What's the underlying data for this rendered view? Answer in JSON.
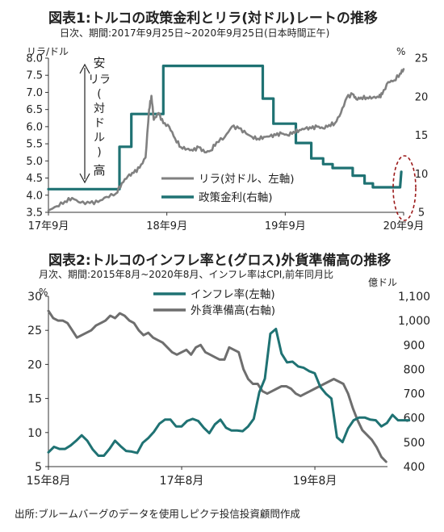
{
  "chart1": {
    "title": "図表1:トルコの政策金利とリラ(対ドル)レートの推移",
    "subtitle": "日次、期間:2017年9月25日~2020年9月25日(日本時間正午)",
    "left_unit": "リラ/ドル",
    "right_unit": "%",
    "annotation": [
      "安",
      "リラ",
      "(",
      "対",
      "ド",
      "ル",
      ")",
      "高"
    ],
    "legend": [
      "リラ(対ドル、左軸)",
      "政策金利(右軸)"
    ],
    "colors": {
      "lira": "#808080",
      "policy": "#1f7273",
      "circle": "#9b1a1a"
    }
  },
  "chart2": {
    "title": "図表2:トルコのインフレ率と(グロス)外貨準備高の推移",
    "subtitle": "月次、期間:2015年8月~2020年8月、インフレ率はCPI,前年同月比",
    "left_unit": "%",
    "right_unit": "億ドル",
    "legend": [
      "インフレ率(左軸)",
      "外貨準備高(右軸)"
    ],
    "colors": {
      "inflation": "#1f7273",
      "reserves": "#6e6e6e"
    }
  },
  "source": "出所:ブルームバーグのデータを使用しピクテ投信投資顧問作成",
  "chart_data": [
    {
      "type": "line",
      "title": "図表1:トルコの政策金利とリラ(対ドル)レートの推移",
      "x_tick_labels": [
        "17年9月",
        "18年9月",
        "19年9月",
        "20年9月"
      ],
      "left_axis": {
        "ticks": [
          "3.5",
          "4.0",
          "4.5",
          "5.0",
          "5.5",
          "6.0",
          "6.5",
          "7.0",
          "7.5",
          "8.0"
        ],
        "ylim": [
          3.5,
          8.0
        ]
      },
      "right_axis": {
        "ticks": [
          "5",
          "10",
          "15",
          "20",
          "25"
        ],
        "ylim": [
          5,
          25
        ]
      },
      "x_range": [
        2017.73,
        2020.73
      ],
      "series": [
        {
          "name": "リラ(対ドル、左軸)",
          "axis": "left",
          "points": [
            [
              2017.73,
              3.55
            ],
            [
              2017.8,
              3.68
            ],
            [
              2017.87,
              3.82
            ],
            [
              2017.93,
              3.92
            ],
            [
              2018.0,
              3.78
            ],
            [
              2018.08,
              3.77
            ],
            [
              2018.15,
              3.8
            ],
            [
              2018.22,
              3.95
            ],
            [
              2018.3,
              4.05
            ],
            [
              2018.35,
              4.35
            ],
            [
              2018.4,
              4.55
            ],
            [
              2018.45,
              4.65
            ],
            [
              2018.5,
              4.8
            ],
            [
              2018.55,
              5.1
            ],
            [
              2018.58,
              6.5
            ],
            [
              2018.6,
              6.9
            ],
            [
              2018.62,
              6.2
            ],
            [
              2018.66,
              6.4
            ],
            [
              2018.7,
              6.1
            ],
            [
              2018.75,
              6.0
            ],
            [
              2018.8,
              5.65
            ],
            [
              2018.85,
              5.4
            ],
            [
              2018.9,
              5.35
            ],
            [
              2018.95,
              5.3
            ],
            [
              2019.0,
              5.4
            ],
            [
              2019.05,
              5.25
            ],
            [
              2019.1,
              5.3
            ],
            [
              2019.15,
              5.55
            ],
            [
              2019.22,
              5.7
            ],
            [
              2019.28,
              6.0
            ],
            [
              2019.34,
              5.95
            ],
            [
              2019.4,
              5.8
            ],
            [
              2019.45,
              5.7
            ],
            [
              2019.5,
              5.65
            ],
            [
              2019.55,
              5.7
            ],
            [
              2019.6,
              5.72
            ],
            [
              2019.65,
              5.75
            ],
            [
              2019.7,
              5.8
            ],
            [
              2019.75,
              5.75
            ],
            [
              2019.8,
              5.85
            ],
            [
              2019.85,
              5.9
            ],
            [
              2019.9,
              5.95
            ],
            [
              2019.95,
              5.95
            ],
            [
              2020.0,
              6.0
            ],
            [
              2020.05,
              5.95
            ],
            [
              2020.1,
              6.05
            ],
            [
              2020.15,
              6.1
            ],
            [
              2020.2,
              6.4
            ],
            [
              2020.25,
              6.85
            ],
            [
              2020.3,
              6.95
            ],
            [
              2020.33,
              6.8
            ],
            [
              2020.37,
              6.85
            ],
            [
              2020.42,
              6.85
            ],
            [
              2020.47,
              6.85
            ],
            [
              2020.52,
              6.86
            ],
            [
              2020.55,
              6.95
            ],
            [
              2020.6,
              7.3
            ],
            [
              2020.65,
              7.35
            ],
            [
              2020.7,
              7.55
            ],
            [
              2020.73,
              7.68
            ]
          ]
        },
        {
          "name": "政策金利(右軸)",
          "axis": "right",
          "points": [
            [
              2017.73,
              8.0
            ],
            [
              2018.33,
              8.0
            ],
            [
              2018.33,
              13.5
            ],
            [
              2018.43,
              13.5
            ],
            [
              2018.43,
              17.75
            ],
            [
              2018.7,
              17.75
            ],
            [
              2018.7,
              24.0
            ],
            [
              2019.54,
              24.0
            ],
            [
              2019.54,
              19.75
            ],
            [
              2019.63,
              19.75
            ],
            [
              2019.63,
              16.5
            ],
            [
              2019.82,
              16.5
            ],
            [
              2019.82,
              14.0
            ],
            [
              2019.95,
              14.0
            ],
            [
              2019.95,
              12.0
            ],
            [
              2020.05,
              12.0
            ],
            [
              2020.05,
              11.25
            ],
            [
              2020.13,
              11.25
            ],
            [
              2020.13,
              10.75
            ],
            [
              2020.3,
              10.75
            ],
            [
              2020.3,
              9.75
            ],
            [
              2020.4,
              9.75
            ],
            [
              2020.4,
              8.75
            ],
            [
              2020.47,
              8.75
            ],
            [
              2020.47,
              8.25
            ],
            [
              2020.7,
              8.25
            ],
            [
              2020.71,
              10.25
            ]
          ]
        }
      ]
    },
    {
      "type": "line",
      "title": "図表2:トルコのインフレ率と(グロス)外貨準備高の推移",
      "x_tick_labels": [
        "15年8月",
        "17年8月",
        "19年8月"
      ],
      "left_axis": {
        "ticks": [
          "5",
          "10",
          "15",
          "20",
          "25",
          "30"
        ],
        "ylim": [
          5,
          30
        ]
      },
      "right_axis": {
        "ticks": [
          "400",
          "500",
          "600",
          "700",
          "800",
          "900",
          "1,000",
          "1,100"
        ],
        "ylim": [
          400,
          1100
        ]
      },
      "x_range": [
        2015.58,
        2020.67
      ],
      "series": [
        {
          "name": "インフレ率(左軸)",
          "axis": "left",
          "values": [
            7.1,
            7.9,
            7.6,
            7.6,
            8.1,
            8.8,
            9.6,
            8.8,
            7.5,
            6.6,
            6.6,
            7.6,
            8.8,
            8.0,
            7.3,
            7.2,
            7.0,
            8.5,
            9.2,
            10.1,
            11.3,
            11.9,
            11.9,
            10.9,
            10.9,
            11.7,
            12.0,
            11.7,
            10.7,
            9.9,
            11.2,
            11.9,
            10.7,
            10.3,
            10.3,
            10.2,
            10.9,
            12.0,
            15.9,
            17.9,
            24.5,
            25.2,
            21.6,
            20.3,
            20.4,
            19.7,
            19.5,
            19.0,
            18.7,
            16.7,
            15.7,
            15.0,
            9.3,
            8.6,
            10.6,
            11.8,
            12.2,
            12.2,
            11.9,
            11.8,
            10.9,
            11.4,
            12.6,
            11.8,
            11.8,
            11.8
          ],
          "x_start": 2015.58,
          "x_step": 0.0833
        },
        {
          "name": "外貨準備高(右軸)",
          "axis": "right",
          "values": [
            1040,
            1010,
            1000,
            1000,
            990,
            960,
            930,
            940,
            950,
            960,
            980,
            990,
            1000,
            1020,
            1010,
            1030,
            1020,
            1000,
            990,
            960,
            940,
            950,
            930,
            920,
            910,
            890,
            870,
            860,
            870,
            880,
            860,
            890,
            900,
            870,
            860,
            850,
            840,
            840,
            890,
            880,
            870,
            800,
            760,
            740,
            740,
            710,
            700,
            710,
            720,
            730,
            730,
            720,
            700,
            690,
            700,
            710,
            720,
            730,
            740,
            750,
            760,
            750,
            740,
            700,
            640,
            590,
            550,
            530,
            510,
            480,
            440,
            420
          ],
          "x_start": 2015.58,
          "x_step": 0.0714
        }
      ]
    }
  ]
}
